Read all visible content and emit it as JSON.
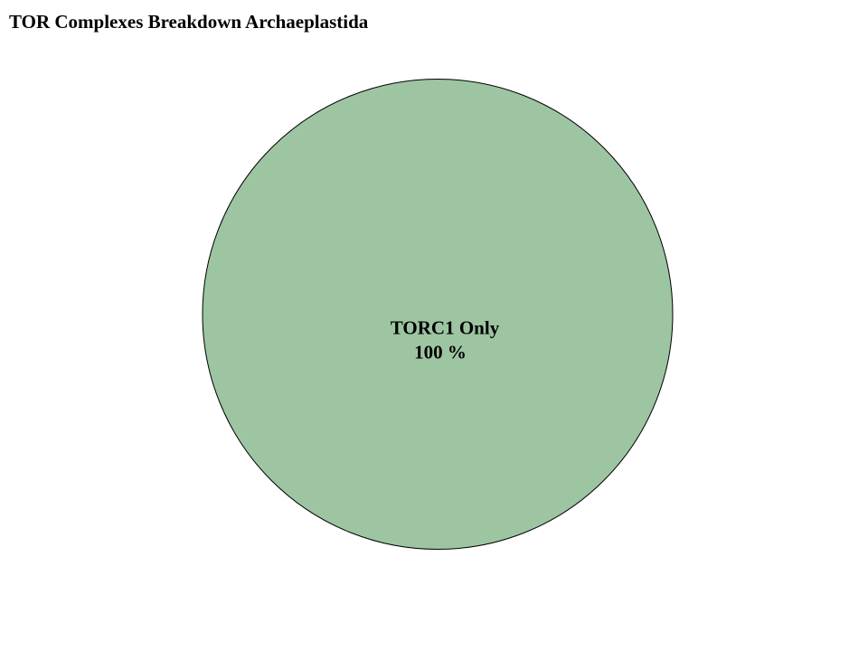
{
  "chart_data": {
    "type": "pie",
    "title": "TOR Complexes Breakdown Archaeplastida",
    "slices": [
      {
        "label": "TORC1 Only",
        "value": 100,
        "percent_label": "100 %",
        "color": "#9dc5a1"
      }
    ],
    "slice_border_color": "#000000",
    "legend": "none"
  }
}
